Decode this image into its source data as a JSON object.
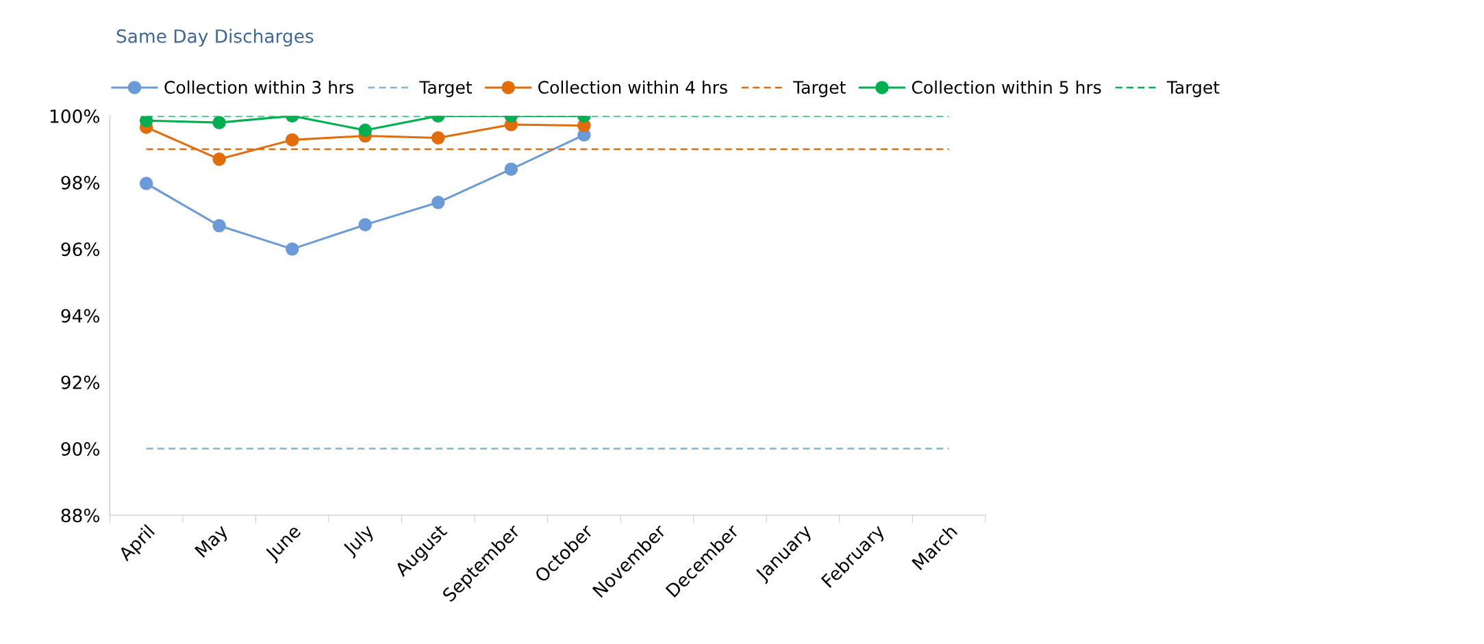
{
  "chart_data": {
    "type": "line",
    "title": "Same Day Discharges",
    "categories": [
      "April",
      "May",
      "June",
      "July",
      "August",
      "September",
      "October",
      "November",
      "December",
      "January",
      "February",
      "March"
    ],
    "series": [
      {
        "name": "Collection within 3 hrs",
        "color": "#6a9ad8",
        "marker": "circle",
        "line_style": "solid",
        "values": [
          97.97,
          96.7,
          96.0,
          96.73,
          97.4,
          98.4,
          99.43,
          null,
          null,
          null,
          null,
          null
        ]
      },
      {
        "name": "Target",
        "color": "#7fb6d0",
        "marker": "none",
        "line_style": "dashed",
        "values": [
          90,
          90,
          90,
          90,
          90,
          90,
          90,
          90,
          90,
          90,
          90,
          90
        ]
      },
      {
        "name": "Collection within 4 hrs",
        "color": "#e36c0a",
        "marker": "circle",
        "line_style": "solid",
        "values": [
          99.66,
          98.7,
          99.28,
          99.4,
          99.34,
          99.74,
          99.71,
          null,
          null,
          null,
          null,
          null
        ]
      },
      {
        "name": "Target",
        "color": "#e36c0a",
        "marker": "none",
        "line_style": "dashed",
        "values": [
          99,
          99,
          99,
          99,
          99,
          99,
          99,
          99,
          99,
          99,
          99,
          99
        ]
      },
      {
        "name": "Collection within 5 hrs",
        "color": "#00b050",
        "marker": "circle",
        "line_style": "solid",
        "values": [
          99.86,
          99.8,
          100,
          99.57,
          100,
          100,
          100,
          null,
          null,
          null,
          null,
          null
        ]
      },
      {
        "name": "Target",
        "color": "#00b050",
        "marker": "none",
        "line_style": "dashed",
        "values": [
          100,
          100,
          100,
          100,
          100,
          100,
          100,
          100,
          100,
          100,
          100,
          100
        ]
      }
    ],
    "ylim": [
      88,
      100
    ],
    "yticks": [
      {
        "value": 88,
        "label": "88%"
      },
      {
        "value": 90,
        "label": "90%"
      },
      {
        "value": 92,
        "label": "92%"
      },
      {
        "value": 94,
        "label": "94%"
      },
      {
        "value": 96,
        "label": "96%"
      },
      {
        "value": 98,
        "label": "98%"
      },
      {
        "value": 100,
        "label": "100%"
      }
    ],
    "grid": false,
    "legend": "top"
  }
}
